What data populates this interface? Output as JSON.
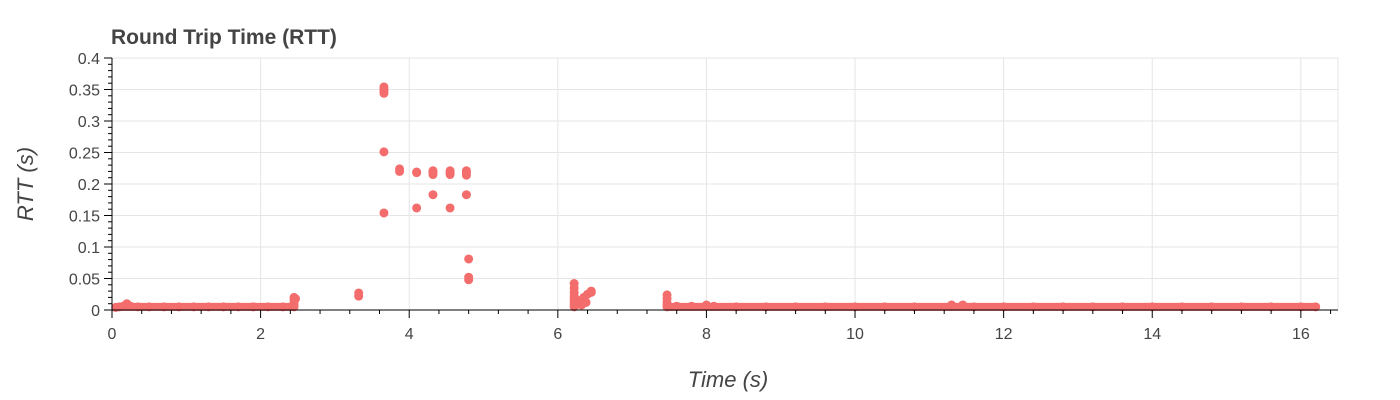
{
  "chart_data": {
    "type": "scatter",
    "title": "Round Trip Time (RTT)",
    "xlabel": "Time (s)",
    "ylabel": "RTT (s)",
    "xlim": [
      0,
      16.5
    ],
    "ylim": [
      0,
      0.4
    ],
    "x_ticks": [
      0,
      2,
      4,
      6,
      8,
      10,
      12,
      14,
      16
    ],
    "x_tick_labels": [
      "0",
      "2",
      "4",
      "6",
      "8",
      "10",
      "12",
      "14",
      "16"
    ],
    "y_ticks": [
      0,
      0.05,
      0.1,
      0.15,
      0.2,
      0.25,
      0.3,
      0.35,
      0.4
    ],
    "y_tick_labels": [
      "0",
      "0.05",
      "0.1",
      "0.15",
      "0.2",
      "0.25",
      "0.3",
      "0.35",
      "0.4"
    ],
    "grid": true,
    "marker_color": "#f46d6d",
    "series": [
      {
        "points": [
          [
            0.05,
            0.004
          ],
          [
            0.1,
            0.005
          ],
          [
            0.15,
            0.006
          ],
          [
            0.2,
            0.01
          ],
          [
            0.25,
            0.006
          ],
          [
            0.35,
            0.005
          ],
          [
            0.5,
            0.005
          ],
          [
            0.7,
            0.005
          ],
          [
            0.9,
            0.005
          ],
          [
            1.1,
            0.005
          ],
          [
            1.3,
            0.005
          ],
          [
            1.5,
            0.005
          ],
          [
            1.7,
            0.005
          ],
          [
            1.9,
            0.005
          ],
          [
            2.1,
            0.005
          ],
          [
            2.3,
            0.005
          ],
          [
            2.45,
            0.005
          ],
          [
            2.45,
            0.008
          ],
          [
            2.45,
            0.012
          ],
          [
            2.45,
            0.016
          ],
          [
            2.45,
            0.02
          ],
          [
            2.47,
            0.018
          ],
          [
            3.32,
            0.022
          ],
          [
            3.32,
            0.027
          ],
          [
            3.66,
            0.354
          ],
          [
            3.66,
            0.351
          ],
          [
            3.66,
            0.348
          ],
          [
            3.66,
            0.344
          ],
          [
            3.66,
            0.251
          ],
          [
            3.66,
            0.154
          ],
          [
            3.87,
            0.224
          ],
          [
            3.87,
            0.22
          ],
          [
            4.1,
            0.219
          ],
          [
            4.1,
            0.218
          ],
          [
            4.1,
            0.162
          ],
          [
            4.32,
            0.221
          ],
          [
            4.32,
            0.218
          ],
          [
            4.32,
            0.215
          ],
          [
            4.32,
            0.183
          ],
          [
            4.55,
            0.221
          ],
          [
            4.55,
            0.218
          ],
          [
            4.55,
            0.215
          ],
          [
            4.55,
            0.162
          ],
          [
            4.77,
            0.221
          ],
          [
            4.77,
            0.218
          ],
          [
            4.77,
            0.214
          ],
          [
            4.77,
            0.183
          ],
          [
            4.8,
            0.081
          ],
          [
            4.8,
            0.052
          ],
          [
            4.8,
            0.048
          ],
          [
            6.22,
            0.042
          ],
          [
            6.22,
            0.035
          ],
          [
            6.22,
            0.028
          ],
          [
            6.22,
            0.022
          ],
          [
            6.22,
            0.018
          ],
          [
            6.22,
            0.013
          ],
          [
            6.22,
            0.009
          ],
          [
            6.22,
            0.005
          ],
          [
            6.3,
            0.015
          ],
          [
            6.35,
            0.02
          ],
          [
            6.4,
            0.025
          ],
          [
            6.45,
            0.028
          ],
          [
            6.45,
            0.03
          ],
          [
            6.38,
            0.012
          ],
          [
            6.32,
            0.008
          ],
          [
            7.47,
            0.024
          ],
          [
            7.47,
            0.018
          ],
          [
            7.47,
            0.012
          ],
          [
            7.47,
            0.008
          ],
          [
            7.47,
            0.005
          ],
          [
            7.6,
            0.006
          ],
          [
            7.8,
            0.006
          ],
          [
            8.0,
            0.008
          ],
          [
            8.1,
            0.006
          ],
          [
            8.4,
            0.005
          ],
          [
            8.8,
            0.005
          ],
          [
            9.2,
            0.005
          ],
          [
            9.6,
            0.005
          ],
          [
            10.0,
            0.005
          ],
          [
            10.4,
            0.005
          ],
          [
            10.8,
            0.005
          ],
          [
            11.3,
            0.008
          ],
          [
            11.45,
            0.008
          ],
          [
            11.6,
            0.005
          ],
          [
            12.0,
            0.005
          ],
          [
            12.4,
            0.005
          ],
          [
            12.8,
            0.005
          ],
          [
            13.2,
            0.005
          ],
          [
            13.6,
            0.005
          ],
          [
            14.0,
            0.005
          ],
          [
            14.4,
            0.005
          ],
          [
            14.8,
            0.005
          ],
          [
            15.2,
            0.005
          ],
          [
            15.6,
            0.005
          ],
          [
            16.0,
            0.005
          ],
          [
            16.2,
            0.005
          ]
        ],
        "dense_bands": [
          {
            "x_from": 0.05,
            "x_to": 2.45,
            "y": 0.005
          },
          {
            "x_from": 7.47,
            "x_to": 16.2,
            "y": 0.005
          }
        ]
      }
    ]
  }
}
